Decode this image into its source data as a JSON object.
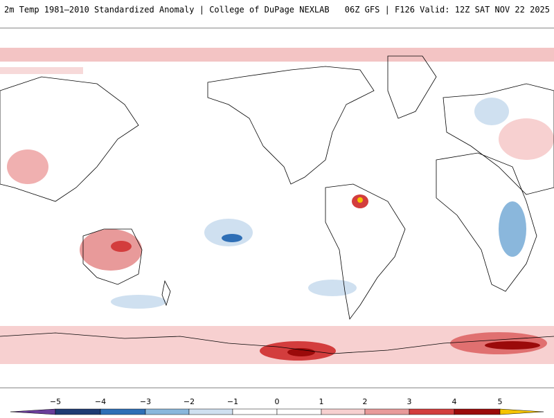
{
  "header": {
    "title_left": "2m Temp 1981–2010 Standardized Anomaly | College of DuPage NEXLAB",
    "title_right": "06Z GFS | F126 Valid: 12Z SAT NOV 22 2025"
  },
  "map": {
    "projection": "equirectangular, Pacific-centered (~120°E to ~60°E)",
    "variable": "2m temperature standardized anomaly"
  },
  "colorbar": {
    "labels": [
      "−5",
      "−4",
      "−3",
      "−2",
      "−1",
      "0",
      "1",
      "2",
      "3",
      "4",
      "5"
    ],
    "colors": [
      "#6a3d9a",
      "#1f3b73",
      "#2f6fb6",
      "#8ab7dc",
      "#cfe0f0",
      "#ffffff",
      "#ffffff",
      "#f7d0d0",
      "#e89a9a",
      "#d33d3d",
      "#9b0a0a",
      "#f5c400"
    ]
  }
}
